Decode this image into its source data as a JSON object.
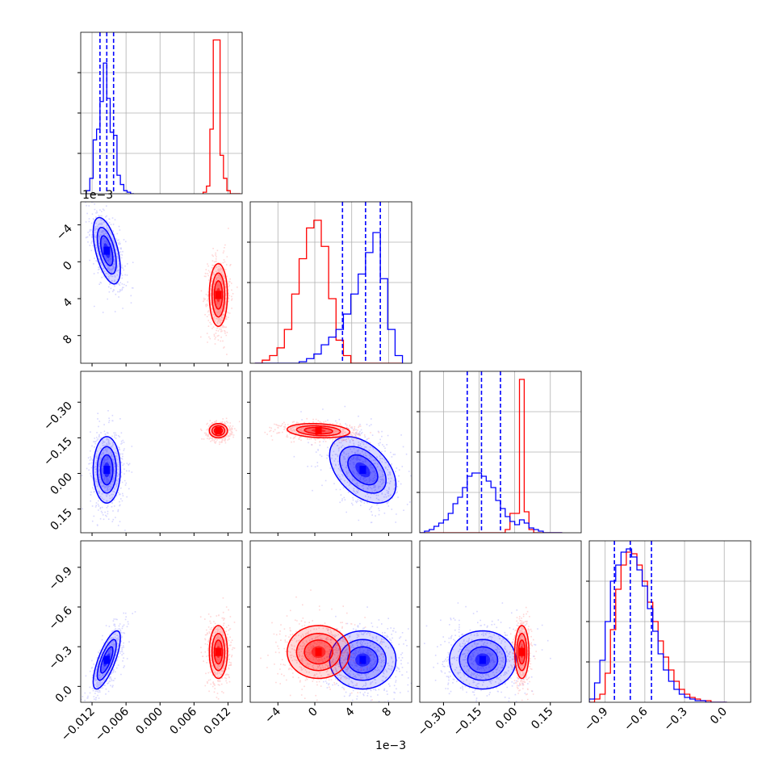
{
  "chart_data": {
    "type": "corner",
    "parameters": 4,
    "series": [
      {
        "name": "",
        "color": "#0000ff"
      },
      {
        "name": "",
        "color": "#ff0000"
      }
    ],
    "colors": {
      "blue": "#0000ff",
      "red": "#ff0000",
      "grid": "#b0b0b0",
      "axis": "#000000"
    },
    "grid": true,
    "axes": [
      {
        "range": [
          -0.014,
          0.0145
        ],
        "ticks": [
          -0.012,
          -0.006,
          0.0,
          0.006,
          0.012
        ],
        "tick_labels": [
          "−0.012",
          "−0.006",
          "0.000",
          "0.006",
          "0.012"
        ]
      },
      {
        "range": [
          -0.007,
          0.0105
        ],
        "ticks": [
          -0.004,
          0.0,
          0.004,
          0.008
        ],
        "tick_labels": [
          "−4",
          "0",
          "4",
          "8"
        ],
        "offset_label": "1e−3"
      },
      {
        "range": [
          -0.4,
          0.28
        ],
        "ticks": [
          -0.3,
          -0.15,
          0.0,
          0.15
        ],
        "tick_labels": [
          "−0.30",
          "−0.15",
          "0.00",
          "0.15"
        ]
      },
      {
        "range": [
          -1.02,
          0.2
        ],
        "ticks": [
          -0.9,
          -0.6,
          -0.3,
          0.0
        ],
        "tick_labels": [
          "−0.9",
          "−0.6",
          "−0.3",
          "0.0"
        ]
      }
    ],
    "y_tick_labels": {
      "row1": [
        "8",
        "4",
        "0",
        "−4"
      ],
      "row2": [
        "0.15",
        "0.00",
        "−0.15",
        "−0.30"
      ],
      "row3": [
        "0.0",
        "−0.3",
        "−0.6",
        "−0.9"
      ]
    },
    "y_offset_label_row1": "1e−3",
    "quantiles_blue": [
      [
        -0.0106,
        -0.0094,
        -0.0082
      ],
      [
        0.003,
        0.0055,
        0.0071
      ],
      [
        -0.2,
        -0.14,
        -0.06
      ],
      [
        -0.83,
        -0.71,
        -0.55
      ]
    ],
    "histograms": [
      {
        "bin_edges": [
          -0.013,
          -0.0124,
          -0.0118,
          -0.0112,
          -0.0106,
          -0.01,
          -0.0094,
          -0.0088,
          -0.0082,
          -0.0076,
          -0.007,
          -0.0064,
          -0.0058,
          -0.0052,
          -0.0046
        ],
        "blue_counts": [
          0.02,
          0.1,
          0.35,
          0.42,
          0.6,
          0.85,
          0.62,
          0.4,
          0.38,
          0.12,
          0.06,
          0.02,
          0.01,
          0.0
        ],
        "red_edges": [
          0.0076,
          0.0082,
          0.0088,
          0.0094,
          0.01,
          0.0106,
          0.0112,
          0.0118,
          0.0124,
          0.013,
          0.0136,
          0.0142
        ],
        "red_counts": [
          0.01,
          0.05,
          0.42,
          1.0,
          1.0,
          0.25,
          0.1,
          0.02,
          0.0,
          0.0,
          0.0
        ],
        "ymax": 1.05
      },
      {
        "bin_edges": [
          -0.0065,
          -0.0057,
          -0.0049,
          -0.0041,
          -0.0033,
          -0.0025,
          -0.0017,
          -0.0009,
          -0.0001,
          0.0007,
          0.0015,
          0.0023,
          0.0031,
          0.0039,
          0.0047,
          0.0055,
          0.0063,
          0.0071,
          0.0079,
          0.0087,
          0.0095
        ],
        "red_counts": [
          0.0,
          0.02,
          0.05,
          0.1,
          0.22,
          0.45,
          0.68,
          0.88,
          0.93,
          0.76,
          0.42,
          0.15,
          0.05,
          0.0,
          0.0,
          0.0,
          0.0,
          0.0,
          0.0,
          0.0
        ],
        "blue_counts": [
          0.0,
          0.0,
          0.0,
          0.0,
          0.0,
          0.0,
          0.01,
          0.03,
          0.06,
          0.12,
          0.17,
          0.22,
          0.32,
          0.45,
          0.58,
          0.72,
          0.85,
          0.55,
          0.22,
          0.05
        ],
        "ymax": 1.05
      },
      {
        "bin_edges": [
          -0.4,
          -0.38,
          -0.36,
          -0.34,
          -0.32,
          -0.3,
          -0.28,
          -0.26,
          -0.24,
          -0.22,
          -0.2,
          -0.18,
          -0.16,
          -0.14,
          -0.12,
          -0.1,
          -0.08,
          -0.06,
          -0.04,
          -0.02,
          0.0,
          0.02,
          0.04,
          0.06,
          0.08,
          0.1,
          0.12,
          0.14,
          0.16,
          0.18,
          0.2
        ],
        "blue_counts": [
          0.0,
          0.01,
          0.02,
          0.04,
          0.06,
          0.08,
          0.12,
          0.18,
          0.22,
          0.28,
          0.35,
          0.37,
          0.37,
          0.35,
          0.32,
          0.28,
          0.2,
          0.15,
          0.1,
          0.07,
          0.05,
          0.08,
          0.06,
          0.03,
          0.02,
          0.01,
          0.0,
          0.0,
          0.0,
          0.0
        ],
        "red_counts": [
          0.0,
          0.0,
          0.0,
          0.0,
          0.0,
          0.0,
          0.0,
          0.0,
          0.0,
          0.0,
          0.0,
          0.0,
          0.0,
          0.0,
          0.0,
          0.0,
          0.0,
          0.0,
          0.02,
          0.12,
          0.12,
          0.95,
          0.13,
          0.02,
          0.0,
          0.0,
          0.0,
          0.0,
          0.0,
          0.0
        ],
        "ymax": 1.0
      },
      {
        "bin_edges": [
          -1.02,
          -0.98,
          -0.94,
          -0.9,
          -0.86,
          -0.82,
          -0.78,
          -0.74,
          -0.7,
          -0.66,
          -0.62,
          -0.58,
          -0.54,
          -0.5,
          -0.46,
          -0.42,
          -0.38,
          -0.34,
          -0.3,
          -0.26,
          -0.22,
          -0.18,
          -0.14,
          -0.1,
          -0.06,
          -0.02,
          0.02
        ],
        "blue_counts": [
          0.02,
          0.12,
          0.26,
          0.5,
          0.75,
          0.85,
          0.93,
          0.95,
          0.9,
          0.82,
          0.72,
          0.58,
          0.44,
          0.3,
          0.2,
          0.13,
          0.08,
          0.05,
          0.03,
          0.02,
          0.01,
          0.01,
          0.0,
          0.0,
          0.0,
          0.0
        ],
        "red_counts": [
          0.0,
          0.02,
          0.05,
          0.18,
          0.45,
          0.7,
          0.85,
          0.93,
          0.92,
          0.85,
          0.75,
          0.62,
          0.5,
          0.38,
          0.28,
          0.2,
          0.13,
          0.08,
          0.05,
          0.03,
          0.02,
          0.01,
          0.01,
          0.0,
          0.0,
          0.0
        ],
        "ymax": 1.0
      }
    ],
    "posteriors": {
      "blue": {
        "mean": [
          -0.0094,
          0.0052,
          -0.135,
          -0.7
        ],
        "sd": [
          0.0012,
          0.0018,
          0.07,
          0.11
        ],
        "corr": [
          [
            1,
            -0.55,
            0.0,
            0.75
          ],
          [
            -0.55,
            1,
            -0.45,
            0.0
          ],
          [
            0.0,
            -0.45,
            1,
            0.0
          ],
          [
            0.75,
            0.0,
            0.0,
            1
          ]
        ]
      },
      "red": {
        "mean": [
          0.0103,
          0.0004,
          0.03,
          -0.64
        ],
        "sd": [
          0.0008,
          0.0017,
          0.015,
          0.1
        ],
        "corr": [
          [
            1,
            0.0,
            0.0,
            0.0
          ],
          [
            0.0,
            1,
            -0.2,
            0.0
          ],
          [
            0.0,
            -0.2,
            1,
            0.0
          ],
          [
            0.0,
            0.0,
            0.0,
            1
          ]
        ]
      }
    }
  }
}
